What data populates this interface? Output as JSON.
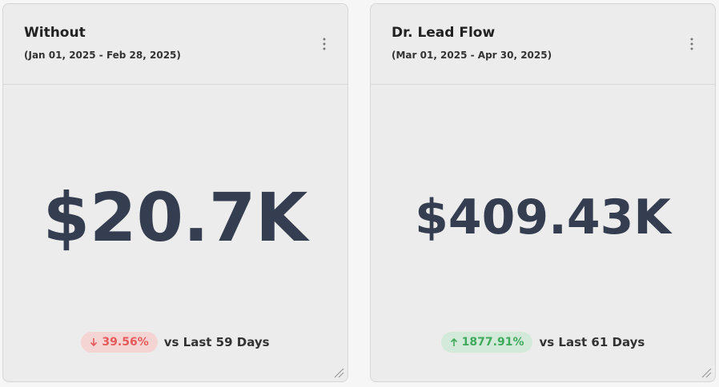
{
  "cards": [
    {
      "title": "Without",
      "date_range": "(Jan 01, 2025 - Feb 28, 2025)",
      "value": "$20.7K",
      "change": "39.56%",
      "comparison": "vs Last 59 Days"
    },
    {
      "title": "Dr. Lead Flow",
      "date_range": "(Mar 01, 2025 - Apr 30, 2025)",
      "value": "$409.43K",
      "change": "1877.91%",
      "comparison": "vs Last 61 Days"
    }
  ]
}
